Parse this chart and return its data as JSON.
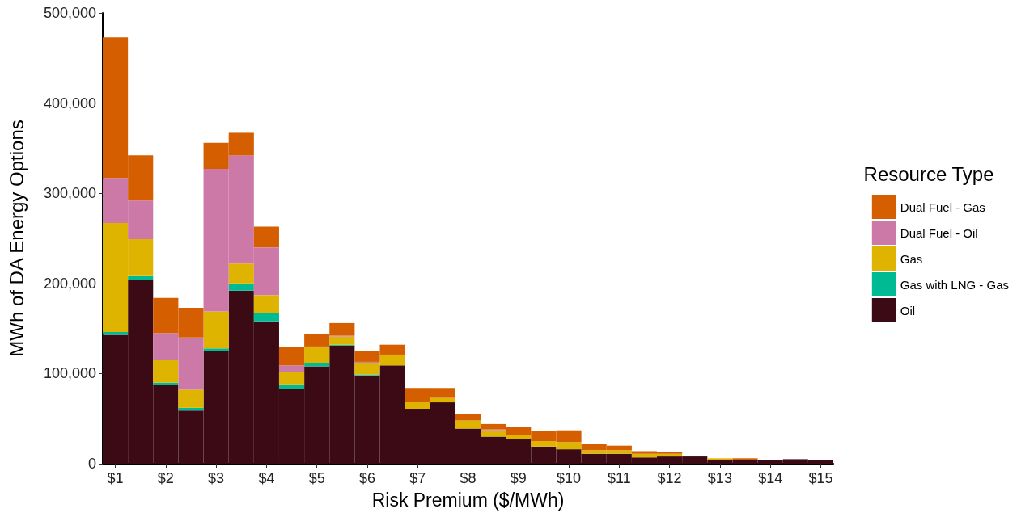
{
  "chart_data": {
    "type": "bar",
    "xlabel": "Risk Premium ($/MWh)",
    "ylabel": "MWh of DA Energy Options",
    "legend_title": "Resource Type",
    "legend": "right",
    "grid": false,
    "stacked": true,
    "categories": [
      "$1",
      null,
      "$2",
      null,
      "$3",
      null,
      "$4",
      null,
      "$5",
      null,
      "$6",
      null,
      "$7",
      null,
      "$8",
      null,
      "$9",
      null,
      "$10",
      null,
      "$11",
      null,
      "$12",
      null,
      "$13",
      null,
      "$14",
      null,
      "$15"
    ],
    "ylim": [
      0,
      500000
    ],
    "yticks": [
      {
        "value": 0,
        "label": "0"
      },
      {
        "value": 100000,
        "label": "100,000"
      },
      {
        "value": 200000,
        "label": "200,000"
      },
      {
        "value": 300000,
        "label": "300,000"
      },
      {
        "value": 400000,
        "label": "400,000"
      },
      {
        "value": 500000,
        "label": "500,000"
      }
    ],
    "series": [
      {
        "name": "Oil",
        "color": "#3b0a14",
        "values": [
          143000,
          204000,
          87000,
          59000,
          125000,
          192000,
          158000,
          83000,
          108000,
          131000,
          98000,
          109000,
          61000,
          68000,
          39000,
          30000,
          27000,
          19000,
          16000,
          11000,
          11000,
          7000,
          8000,
          8000,
          4000,
          4000,
          4000,
          5000,
          4000
        ]
      },
      {
        "name": "Gas with LNG - Gas",
        "color": "#00ba93",
        "values": [
          3000,
          4000,
          3000,
          3000,
          3000,
          8000,
          9000,
          5000,
          4000,
          1000,
          1000,
          null,
          null,
          null,
          null,
          null,
          null,
          null,
          null,
          null,
          null,
          null,
          null,
          null,
          null,
          null,
          null,
          null,
          null
        ]
      },
      {
        "name": "Gas",
        "color": "#dfb400",
        "values": [
          121000,
          41000,
          25000,
          20000,
          41000,
          22000,
          20000,
          14000,
          17000,
          9000,
          13000,
          12000,
          7000,
          5000,
          9000,
          7000,
          5000,
          6000,
          8000,
          4000,
          4000,
          4000,
          3000,
          null,
          2000,
          null,
          null,
          null,
          null
        ]
      },
      {
        "name": "Dual Fuel - Oil",
        "color": "#cc79a7",
        "values": [
          50000,
          43000,
          30000,
          58000,
          158000,
          120000,
          53000,
          7000,
          1000,
          1000,
          1000,
          null,
          1000,
          null,
          null,
          1000,
          null,
          null,
          null,
          null,
          null,
          null,
          null,
          null,
          null,
          null,
          null,
          null,
          null
        ]
      },
      {
        "name": "Dual Fuel - Gas",
        "color": "#d55e00",
        "values": [
          156000,
          50000,
          39000,
          33000,
          29000,
          25000,
          23000,
          20000,
          14000,
          14000,
          12000,
          11000,
          15000,
          11000,
          7000,
          6000,
          9000,
          11000,
          13000,
          7000,
          5000,
          3000,
          2000,
          null,
          null,
          2000,
          null,
          null,
          null
        ]
      }
    ]
  }
}
